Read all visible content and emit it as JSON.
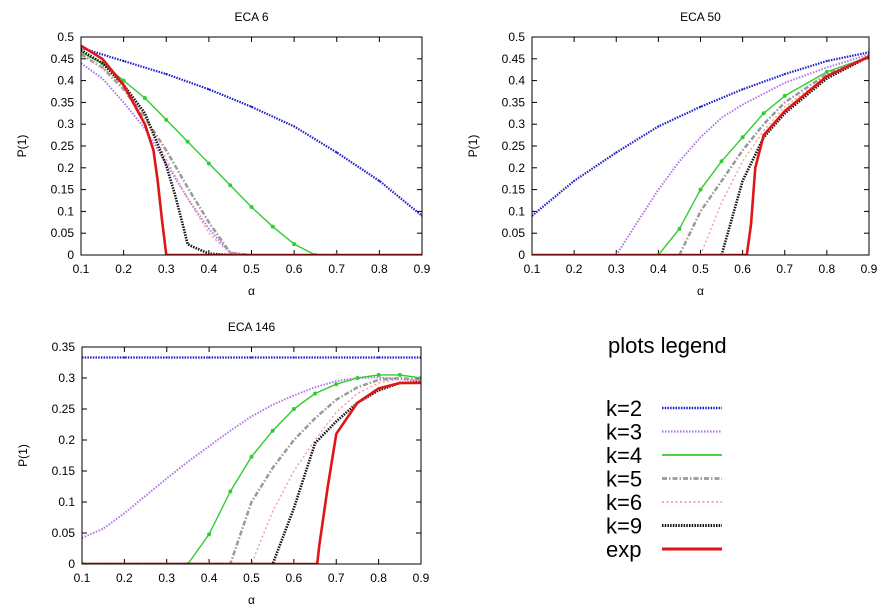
{
  "legend": {
    "title": "plots legend",
    "entries": [
      {
        "label": "k=2",
        "color": "#1f1fcc",
        "style": "dots-dense"
      },
      {
        "label": "k=3",
        "color": "#b074e8",
        "style": "dots"
      },
      {
        "label": "k=4",
        "color": "#33cc33",
        "style": "line-markers"
      },
      {
        "label": "k=5",
        "color": "#9a9a9a",
        "style": "dashdot"
      },
      {
        "label": "k=6",
        "color": "#f0a09a",
        "style": "dots-sparse"
      },
      {
        "label": "k=9",
        "color": "#111111",
        "style": "dots-dense"
      },
      {
        "label": "exp",
        "color": "#e01515",
        "style": "solid-thick"
      }
    ]
  },
  "chart_data": [
    {
      "type": "line",
      "title": "ECA 6",
      "xlabel": "α",
      "ylabel": "P(1)",
      "xlim": [
        0.1,
        0.9
      ],
      "ylim": [
        0,
        0.5
      ],
      "xticks": [
        "0.1",
        "0.2",
        "0.3",
        "0.4",
        "0.5",
        "0.6",
        "0.7",
        "0.8",
        "0.9"
      ],
      "yticks": [
        "0",
        "0.05",
        "0.1",
        "0.15",
        "0.2",
        "0.25",
        "0.3",
        "0.35",
        "0.4",
        "0.45",
        "0.5"
      ],
      "series": [
        {
          "name": "k=2",
          "x": [
            0.1,
            0.2,
            0.3,
            0.4,
            0.5,
            0.6,
            0.7,
            0.8,
            0.9
          ],
          "y": [
            0.475,
            0.445,
            0.415,
            0.38,
            0.34,
            0.295,
            0.235,
            0.17,
            0.09
          ]
        },
        {
          "name": "k=3",
          "x": [
            0.1,
            0.15,
            0.2,
            0.25,
            0.3,
            0.35,
            0.4,
            0.45,
            0.5
          ],
          "y": [
            0.44,
            0.405,
            0.35,
            0.29,
            0.21,
            0.13,
            0.06,
            0.005,
            0
          ]
        },
        {
          "name": "k=4",
          "x": [
            0.1,
            0.15,
            0.2,
            0.25,
            0.3,
            0.35,
            0.4,
            0.45,
            0.5,
            0.55,
            0.6,
            0.65,
            0.7
          ],
          "y": [
            0.465,
            0.44,
            0.4,
            0.36,
            0.31,
            0.26,
            0.21,
            0.16,
            0.11,
            0.065,
            0.025,
            0,
            0
          ]
        },
        {
          "name": "k=5",
          "x": [
            0.1,
            0.15,
            0.2,
            0.25,
            0.3,
            0.35,
            0.4,
            0.45,
            0.5
          ],
          "y": [
            0.46,
            0.43,
            0.38,
            0.315,
            0.24,
            0.155,
            0.075,
            0.005,
            0
          ]
        },
        {
          "name": "k=6",
          "x": [
            0.1,
            0.15,
            0.2,
            0.25,
            0.3,
            0.35,
            0.4,
            0.45,
            0.5
          ],
          "y": [
            0.465,
            0.43,
            0.39,
            0.32,
            0.22,
            0.13,
            0.05,
            0.003,
            0
          ]
        },
        {
          "name": "k=9",
          "x": [
            0.1,
            0.15,
            0.2,
            0.25,
            0.3,
            0.32,
            0.34,
            0.35,
            0.36,
            0.4,
            0.45
          ],
          "y": [
            0.47,
            0.44,
            0.39,
            0.325,
            0.205,
            0.14,
            0.065,
            0.025,
            0.02,
            0.003,
            0
          ]
        },
        {
          "name": "exp",
          "x": [
            0.1,
            0.15,
            0.2,
            0.25,
            0.27,
            0.28,
            0.29,
            0.3,
            0.9
          ],
          "y": [
            0.48,
            0.45,
            0.39,
            0.3,
            0.24,
            0.17,
            0.08,
            0,
            0
          ]
        }
      ]
    },
    {
      "type": "line",
      "title": "ECA 50",
      "xlabel": "α",
      "ylabel": "P(1)",
      "xlim": [
        0.1,
        0.9
      ],
      "ylim": [
        0,
        0.5
      ],
      "xticks": [
        "0.1",
        "0.2",
        "0.3",
        "0.4",
        "0.5",
        "0.6",
        "0.7",
        "0.8",
        "0.9"
      ],
      "yticks": [
        "0",
        "0.05",
        "0.1",
        "0.15",
        "0.2",
        "0.25",
        "0.3",
        "0.35",
        "0.4",
        "0.45",
        "0.5"
      ],
      "series": [
        {
          "name": "k=2",
          "x": [
            0.1,
            0.2,
            0.3,
            0.4,
            0.5,
            0.6,
            0.7,
            0.8,
            0.9
          ],
          "y": [
            0.09,
            0.17,
            0.235,
            0.295,
            0.34,
            0.38,
            0.415,
            0.445,
            0.465
          ]
        },
        {
          "name": "k=3",
          "x": [
            0.3,
            0.35,
            0.4,
            0.45,
            0.5,
            0.55,
            0.6,
            0.7,
            0.8,
            0.9
          ],
          "y": [
            0,
            0.075,
            0.15,
            0.215,
            0.27,
            0.315,
            0.345,
            0.395,
            0.43,
            0.46
          ]
        },
        {
          "name": "k=4",
          "x": [
            0.4,
            0.45,
            0.5,
            0.55,
            0.6,
            0.65,
            0.7,
            0.8,
            0.9
          ],
          "y": [
            0,
            0.06,
            0.15,
            0.215,
            0.27,
            0.325,
            0.365,
            0.42,
            0.455
          ]
        },
        {
          "name": "k=5",
          "x": [
            0.45,
            0.5,
            0.55,
            0.6,
            0.65,
            0.7,
            0.8,
            0.9
          ],
          "y": [
            0,
            0.1,
            0.17,
            0.24,
            0.3,
            0.35,
            0.415,
            0.455
          ]
        },
        {
          "name": "k=6",
          "x": [
            0.5,
            0.55,
            0.6,
            0.65,
            0.7,
            0.8,
            0.9
          ],
          "y": [
            0,
            0.12,
            0.215,
            0.285,
            0.34,
            0.41,
            0.455
          ]
        },
        {
          "name": "k=9",
          "x": [
            0.55,
            0.6,
            0.65,
            0.7,
            0.8,
            0.9
          ],
          "y": [
            0,
            0.17,
            0.27,
            0.325,
            0.405,
            0.455
          ]
        },
        {
          "name": "exp",
          "x": [
            0.1,
            0.61,
            0.62,
            0.63,
            0.65,
            0.7,
            0.8,
            0.9
          ],
          "y": [
            0,
            0,
            0.07,
            0.2,
            0.275,
            0.33,
            0.41,
            0.455
          ]
        }
      ]
    },
    {
      "type": "line",
      "title": "ECA 146",
      "xlabel": "α",
      "ylabel": "P(1)",
      "xlim": [
        0.1,
        0.9
      ],
      "ylim": [
        0,
        0.35
      ],
      "xticks": [
        "0.1",
        "0.2",
        "0.3",
        "0.4",
        "0.5",
        "0.6",
        "0.7",
        "0.8",
        "0.9"
      ],
      "yticks": [
        "0",
        "0.05",
        "0.1",
        "0.15",
        "0.2",
        "0.25",
        "0.3",
        "0.35"
      ],
      "series": [
        {
          "name": "k=2",
          "x": [
            0.1,
            0.2,
            0.3,
            0.4,
            0.5,
            0.6,
            0.7,
            0.8,
            0.9
          ],
          "y": [
            0.333,
            0.333,
            0.333,
            0.333,
            0.333,
            0.333,
            0.333,
            0.333,
            0.333
          ]
        },
        {
          "name": "k=3",
          "x": [
            0.1,
            0.15,
            0.2,
            0.25,
            0.3,
            0.35,
            0.4,
            0.45,
            0.5,
            0.55,
            0.6,
            0.65,
            0.7,
            0.75,
            0.8,
            0.85,
            0.9
          ],
          "y": [
            0.042,
            0.057,
            0.082,
            0.11,
            0.138,
            0.165,
            0.19,
            0.215,
            0.238,
            0.257,
            0.272,
            0.285,
            0.295,
            0.3,
            0.301,
            0.298,
            0.295
          ]
        },
        {
          "name": "k=4",
          "x": [
            0.1,
            0.35,
            0.4,
            0.45,
            0.5,
            0.55,
            0.6,
            0.65,
            0.7,
            0.75,
            0.8,
            0.85,
            0.9
          ],
          "y": [
            0,
            0,
            0.048,
            0.117,
            0.173,
            0.215,
            0.25,
            0.275,
            0.29,
            0.3,
            0.305,
            0.305,
            0.3
          ]
        },
        {
          "name": "k=5",
          "x": [
            0.1,
            0.45,
            0.5,
            0.55,
            0.6,
            0.65,
            0.7,
            0.75,
            0.8,
            0.85,
            0.9
          ],
          "y": [
            0,
            0,
            0.1,
            0.155,
            0.2,
            0.235,
            0.265,
            0.285,
            0.297,
            0.3,
            0.297
          ]
        },
        {
          "name": "k=6",
          "x": [
            0.1,
            0.5,
            0.55,
            0.6,
            0.65,
            0.7,
            0.75,
            0.8,
            0.85,
            0.9
          ],
          "y": [
            0,
            0,
            0.085,
            0.15,
            0.2,
            0.245,
            0.275,
            0.292,
            0.298,
            0.295
          ]
        },
        {
          "name": "k=9",
          "x": [
            0.1,
            0.55,
            0.6,
            0.65,
            0.7,
            0.75,
            0.8,
            0.85,
            0.9
          ],
          "y": [
            0,
            0,
            0.09,
            0.195,
            0.23,
            0.26,
            0.28,
            0.292,
            0.293
          ]
        },
        {
          "name": "exp",
          "x": [
            0.1,
            0.655,
            0.66,
            0.68,
            0.7,
            0.75,
            0.8,
            0.85,
            0.9
          ],
          "y": [
            0,
            0,
            0.03,
            0.125,
            0.21,
            0.26,
            0.283,
            0.292,
            0.292
          ]
        }
      ]
    }
  ]
}
